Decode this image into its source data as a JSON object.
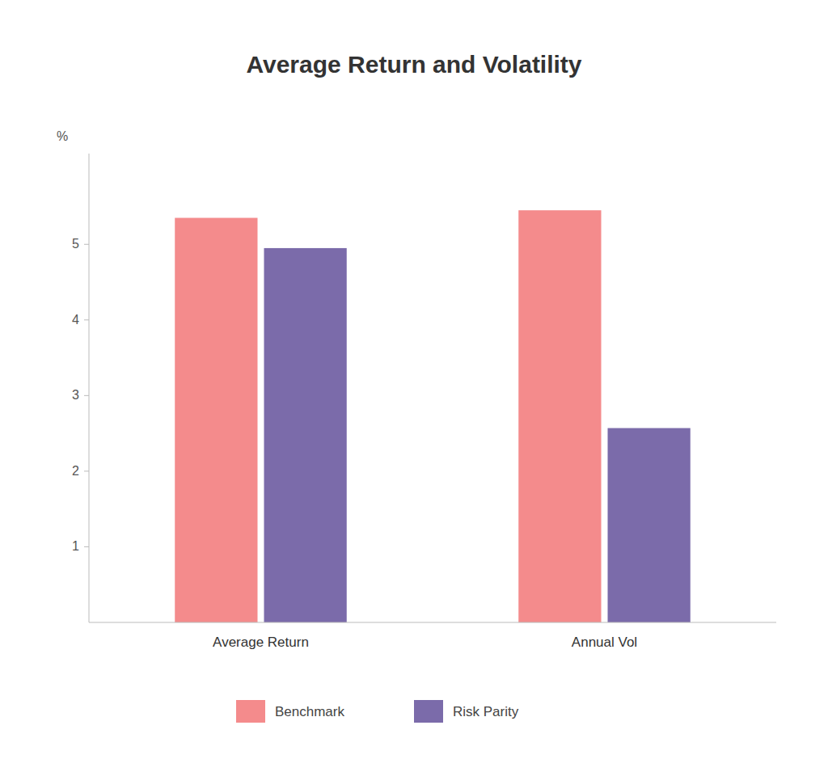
{
  "chart_data": {
    "type": "bar",
    "title": "Average Return and Volatility",
    "categories": [
      "Average Return",
      "Annual Vol"
    ],
    "series": [
      {
        "name": "Benchmark",
        "color": "#F48B8C",
        "values": [
          5.35,
          5.45
        ]
      },
      {
        "name": "Risk Parity",
        "color": "#7B6BAA",
        "values": [
          4.95,
          2.57
        ]
      }
    ],
    "ylabel": "%",
    "ylim": [
      0,
      6.2
    ],
    "yticks": [
      1,
      2,
      3,
      4,
      5
    ],
    "grid": false,
    "legend": "bottom"
  }
}
